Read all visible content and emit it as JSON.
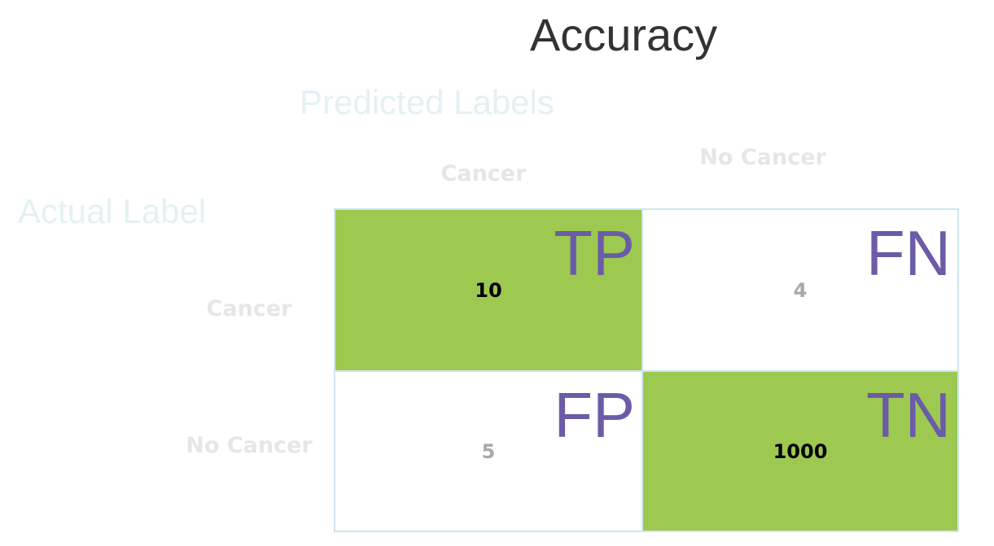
{
  "title": "Accuracy",
  "predicted_axis_label": "Predicted Labels",
  "actual_axis_label": "Actual Label",
  "column_headers": [
    "Cancer",
    "No Cancer"
  ],
  "row_headers": [
    "Cancer",
    "No Cancer"
  ],
  "cells": [
    {
      "tag": "TP",
      "value": "10",
      "highlighted": true
    },
    {
      "tag": "FN",
      "value": "4",
      "highlighted": false
    },
    {
      "tag": "FP",
      "value": "5",
      "highlighted": false
    },
    {
      "tag": "TN",
      "value": "1000",
      "highlighted": true
    }
  ],
  "colors": {
    "highlight": "#9dc951",
    "tag": "#6b5ba8",
    "value_highlighted": "#000000",
    "value_plain": "#a8a8a8"
  }
}
